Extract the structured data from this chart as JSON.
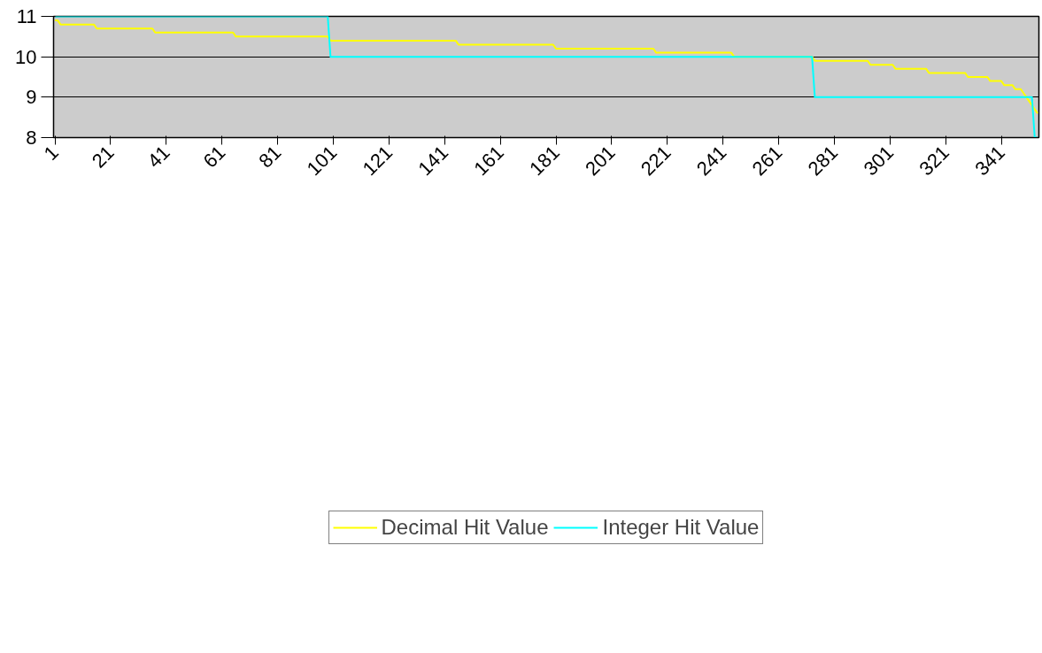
{
  "chart_data": {
    "type": "line",
    "xlim": [
      0.5,
      354.5
    ],
    "xticks": [
      1,
      21,
      41,
      61,
      81,
      101,
      121,
      141,
      161,
      181,
      201,
      221,
      241,
      261,
      281,
      301,
      321,
      341
    ],
    "ylim": [
      8,
      11
    ],
    "yticks": [
      8,
      9,
      10,
      11
    ],
    "grid": "y",
    "legend": "bottom",
    "series": [
      {
        "name": "Decimal Hit Value",
        "color": "#ffff00",
        "x": [
          1,
          2,
          3,
          15,
          16,
          36,
          37,
          65,
          66,
          99,
          100,
          145,
          146,
          180,
          181,
          216,
          217,
          244,
          245,
          273,
          274,
          293,
          294,
          302,
          303,
          314,
          315,
          328,
          329,
          336,
          337,
          341,
          342,
          345,
          346,
          348,
          349,
          350,
          351,
          352,
          353,
          354
        ],
        "values": [
          10.9,
          10.9,
          10.8,
          10.8,
          10.7,
          10.7,
          10.6,
          10.6,
          10.5,
          10.5,
          10.4,
          10.4,
          10.3,
          10.3,
          10.2,
          10.2,
          10.1,
          10.1,
          10,
          10,
          9.9,
          9.9,
          9.8,
          9.8,
          9.7,
          9.7,
          9.6,
          9.6,
          9.5,
          9.5,
          9.4,
          9.4,
          9.3,
          9.3,
          9.2,
          9.2,
          9.1,
          9.0,
          8.9,
          8.8,
          8.7,
          8.6
        ]
      },
      {
        "name": "Integer Hit Value",
        "color": "#00ffff",
        "x": [
          1,
          99,
          100,
          273,
          274,
          352,
          353,
          354
        ],
        "values": [
          11,
          11,
          10,
          10,
          9,
          9,
          8,
          8
        ]
      }
    ]
  }
}
